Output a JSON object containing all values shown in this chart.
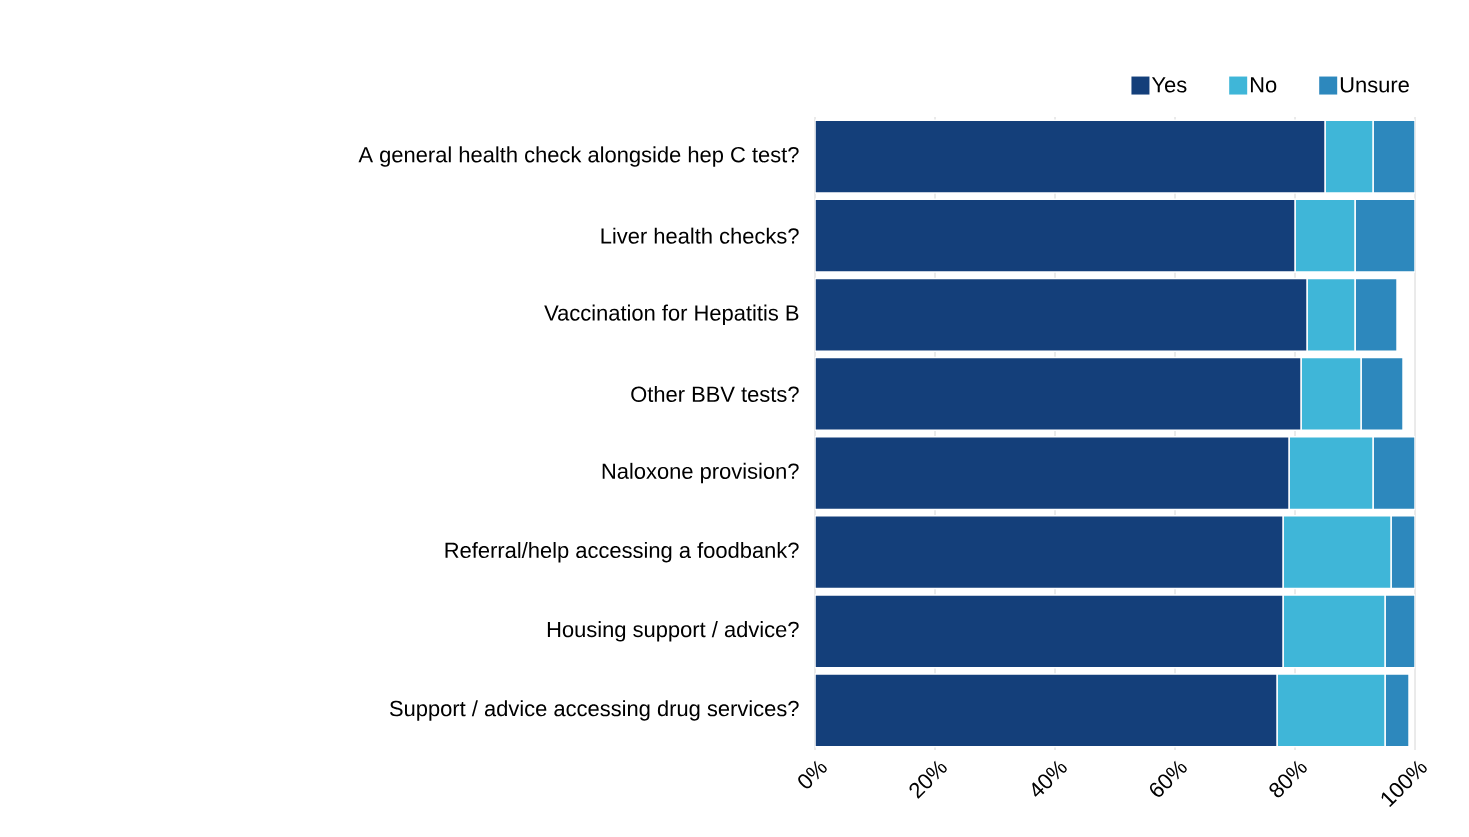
{
  "chart_data": {
    "type": "bar",
    "orientation": "horizontal",
    "stacked": true,
    "categories": [
      "A general health check alongside hep C test?",
      "Liver health checks?",
      "Vaccination for Hepatitis B",
      "Other BBV tests?",
      "Naloxone provision?",
      "Referral/help accessing a foodbank?",
      "Housing support / advice?",
      "Support / advice accessing drug services?"
    ],
    "series": [
      {
        "name": "Yes",
        "color": "#143f7a",
        "values": [
          85,
          80,
          82,
          81,
          79,
          78,
          78,
          77
        ]
      },
      {
        "name": "No",
        "color": "#3fb6d8",
        "values": [
          8,
          10,
          8,
          10,
          14,
          18,
          17,
          18
        ]
      },
      {
        "name": "Unsure",
        "color": "#2d88bd",
        "values": [
          7,
          10,
          7,
          7,
          7,
          4,
          5,
          4
        ]
      }
    ],
    "xlim": [
      0,
      100
    ],
    "xticks": [
      {
        "value": 0,
        "label": "0%"
      },
      {
        "value": 20,
        "label": "20%"
      },
      {
        "value": 40,
        "label": "40%"
      },
      {
        "value": 60,
        "label": "60%"
      },
      {
        "value": 80,
        "label": "80%"
      },
      {
        "value": 100,
        "label": "100%"
      }
    ],
    "grid": "x",
    "legend": "top right"
  }
}
